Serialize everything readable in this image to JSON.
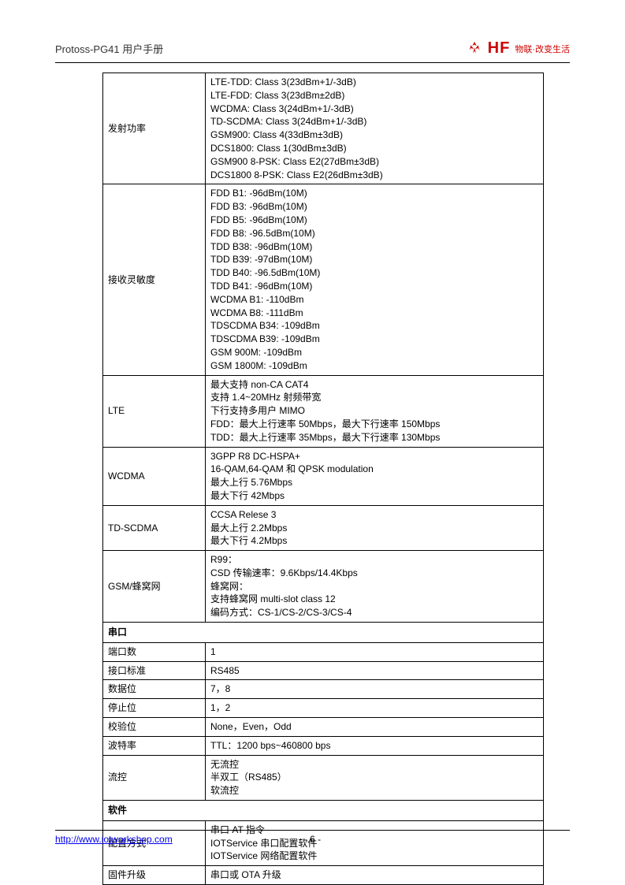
{
  "header": {
    "title": "Protoss-PG41 用户手册",
    "logo_text": "HF",
    "logo_tagline": "物联·改变生活"
  },
  "colors": {
    "brand_red": "#cc0000",
    "link_blue": "#0000ee",
    "border": "#000000"
  },
  "table": {
    "rows": [
      {
        "label": "发射功率",
        "value": "LTE-TDD: Class 3(23dBm+1/-3dB)\nLTE-FDD: Class 3(23dBm±2dB)\nWCDMA: Class 3(24dBm+1/-3dB)\nTD-SCDMA: Class 3(24dBm+1/-3dB)\nGSM900: Class 4(33dBm±3dB)\nDCS1800: Class 1(30dBm±3dB)\nGSM900 8-PSK: Class E2(27dBm±3dB)\nDCS1800 8-PSK: Class E2(26dBm±3dB)"
      },
      {
        "label": "接收灵敏度",
        "value": "FDD B1: -96dBm(10M)\nFDD B3: -96dBm(10M)\nFDD B5: -96dBm(10M)\nFDD B8: -96.5dBm(10M)\nTDD B38: -96dBm(10M)\nTDD B39: -97dBm(10M)\nTDD B40: -96.5dBm(10M)\nTDD B41: -96dBm(10M)\nWCDMA B1: -110dBm\nWCDMA B8: -111dBm\nTDSCDMA B34: -109dBm\nTDSCDMA B39: -109dBm\nGSM 900M: -109dBm\nGSM 1800M: -109dBm"
      },
      {
        "label": "LTE",
        "value": "最大支持 non-CA CAT4\n支持 1.4~20MHz 射频带宽\n下行支持多用户 MIMO\nFDD：最大上行速率 50Mbps，最大下行速率 150Mbps\nTDD：最大上行速率 35Mbps，最大下行速率 130Mbps"
      },
      {
        "label": "WCDMA",
        "value": "3GPP R8 DC-HSPA+\n16-QAM,64-QAM 和 QPSK modulation\n最大上行 5.76Mbps\n最大下行 42Mbps"
      },
      {
        "label": "TD-SCDMA",
        "value": "CCSA Relese 3\n最大上行 2.2Mbps\n最大下行 4.2Mbps"
      },
      {
        "label": "GSM/蜂窝网",
        "value": "R99：\nCSD 传输速率：9.6Kbps/14.4Kbps\n蜂窝网：\n支持蜂窝网 multi-slot class 12\n编码方式：CS-1/CS-2/CS-3/CS-4"
      },
      {
        "section": "串口"
      },
      {
        "label": "端口数",
        "value": "1"
      },
      {
        "label": "接口标准",
        "value": "RS485"
      },
      {
        "label": "数据位",
        "value": "7，8"
      },
      {
        "label": "停止位",
        "value": "1，2"
      },
      {
        "label": "校验位",
        "value": "None，Even，Odd"
      },
      {
        "label": "波特率",
        "value": "TTL：1200 bps~460800 bps"
      },
      {
        "label": "流控",
        "value": "无流控\n半双工（RS485）\n软流控"
      },
      {
        "section": "软件"
      },
      {
        "label": "配置方式",
        "value": "串口 AT 指令\nIOTService 串口配置软件\nIOTService 网络配置软件"
      },
      {
        "label": "固件升级",
        "value": "串口或 OTA 升级"
      }
    ]
  },
  "footer": {
    "url": "http://www.iotworkshop.com",
    "page": "- 6 -"
  }
}
